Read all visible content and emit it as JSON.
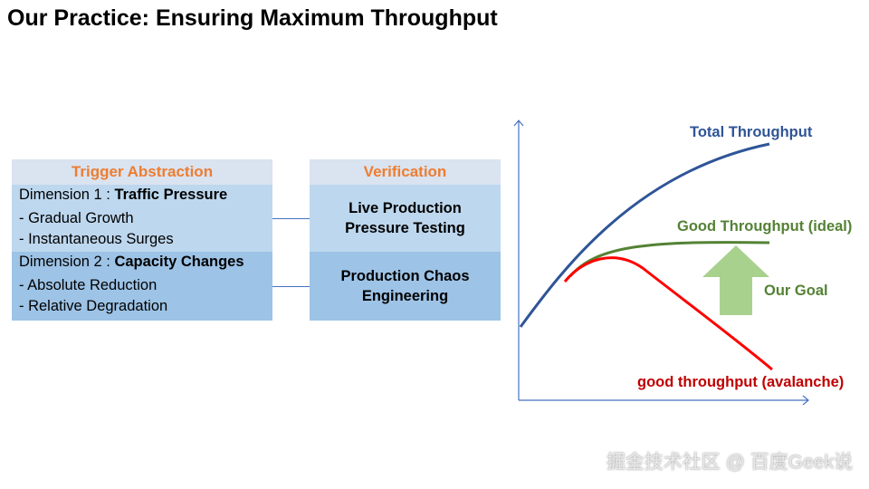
{
  "title": "Our Practice: Ensuring Maximum Throughput",
  "trigger": {
    "header": "Trigger Abstraction",
    "dimensions": [
      {
        "prefix": "Dimension 1 : ",
        "name": "Traffic Pressure",
        "items": [
          "- Gradual Growth",
          "- Instantaneous Surges"
        ]
      },
      {
        "prefix": "Dimension 2 : ",
        "name": "Capacity Changes",
        "items": [
          "- Absolute Reduction",
          "- Relative Degradation"
        ]
      }
    ]
  },
  "verification": {
    "header": "Verification",
    "items": [
      {
        "line1": "Live Production",
        "line2": "Pressure Testing"
      },
      {
        "line1": "Production Chaos",
        "line2": "Engineering"
      }
    ]
  },
  "diagram": {
    "curves": {
      "total": {
        "label": "Total Throughput",
        "color": "#2f5597"
      },
      "ideal": {
        "label": "Good Throughput (ideal)",
        "color": "#548235"
      },
      "avalanche": {
        "label": "good throughput (avalanche)",
        "color": "#ff0000"
      }
    },
    "goal": {
      "label": "Our Goal",
      "arrow_color": "#a9d18e"
    },
    "axis_color": "#4472c4"
  },
  "watermark": "掘金技术社区 @ 百度Geek说"
}
